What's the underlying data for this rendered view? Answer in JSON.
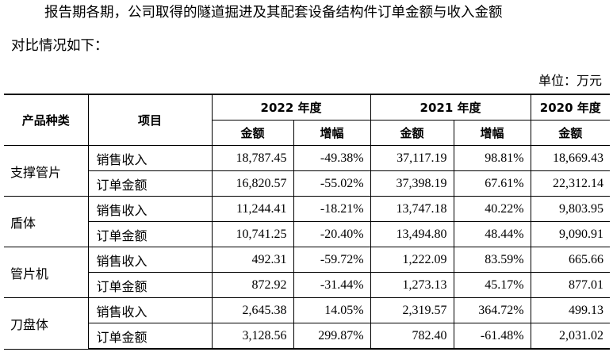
{
  "intro": {
    "line1": "报告期各期，公司取得的隧道掘进及其配套设备结构件订单金额与收入金额",
    "line2": "对比情况如下："
  },
  "unit": "单位：万元",
  "headers": {
    "category": "产品种类",
    "item": "项目",
    "year2022": "2022 年度",
    "year2021": "2021 年度",
    "year2020": "2020 年度",
    "amount": "金额",
    "growth": "增幅"
  },
  "groups": [
    {
      "category": "支撑管片",
      "rows": [
        {
          "item": "销售收入",
          "a2022": "18,787.45",
          "g2022": "-49.38%",
          "a2021": "37,117.19",
          "g2021": "98.81%",
          "a2020": "18,669.43"
        },
        {
          "item": "订单金额",
          "a2022": "16,820.57",
          "g2022": "-55.02%",
          "a2021": "37,398.19",
          "g2021": "67.61%",
          "a2020": "22,312.14"
        }
      ]
    },
    {
      "category": "盾体",
      "rows": [
        {
          "item": "销售收入",
          "a2022": "11,244.41",
          "g2022": "-18.21%",
          "a2021": "13,747.18",
          "g2021": "40.22%",
          "a2020": "9,803.95"
        },
        {
          "item": "订单金额",
          "a2022": "10,741.25",
          "g2022": "-20.40%",
          "a2021": "13,494.80",
          "g2021": "48.44%",
          "a2020": "9,090.91"
        }
      ]
    },
    {
      "category": "管片机",
      "rows": [
        {
          "item": "销售收入",
          "a2022": "492.31",
          "g2022": "-59.72%",
          "a2021": "1,222.09",
          "g2021": "83.59%",
          "a2020": "665.66"
        },
        {
          "item": "订单金额",
          "a2022": "872.92",
          "g2022": "-31.44%",
          "a2021": "1,273.13",
          "g2021": "45.17%",
          "a2020": "877.01"
        }
      ]
    },
    {
      "category": "刀盘体",
      "rows": [
        {
          "item": "销售收入",
          "a2022": "2,645.38",
          "g2022": "14.05%",
          "a2021": "2,319.57",
          "g2021": "364.72%",
          "a2020": "499.13"
        },
        {
          "item": "订单金额",
          "a2022": "3,128.56",
          "g2022": "299.87%",
          "a2021": "782.40",
          "g2021": "-61.48%",
          "a2020": "2,031.02"
        }
      ]
    }
  ]
}
